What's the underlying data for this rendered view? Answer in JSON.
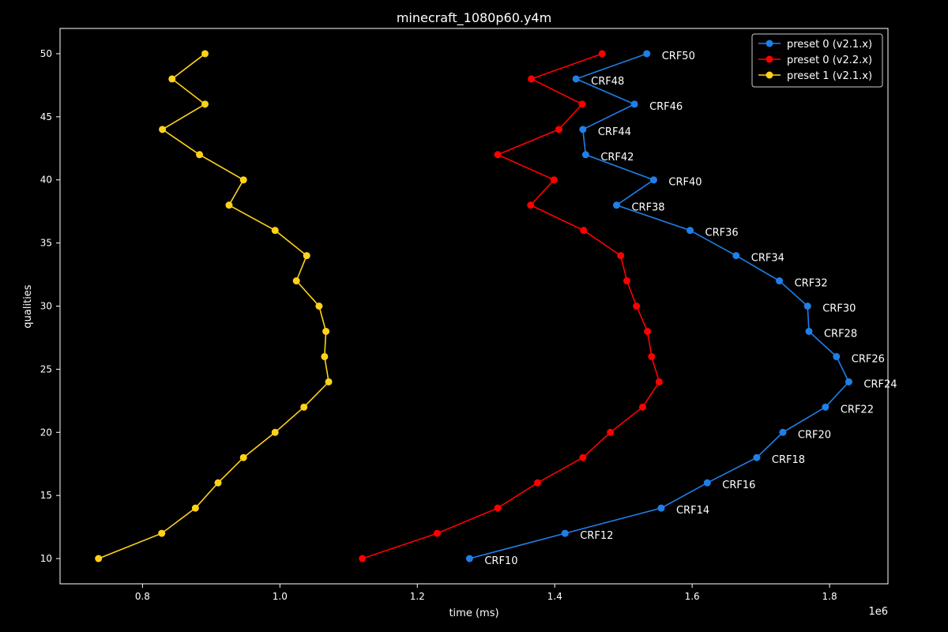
{
  "chart_data": {
    "type": "line",
    "title": "minecraft_1080p60.y4m",
    "xlabel": "time (ms)",
    "ylabel": "qualities",
    "x_offset_label": "1e6",
    "xlim": [
      0.68,
      1.885
    ],
    "ylim": [
      8,
      52
    ],
    "x_ticks": [
      0.8,
      1.0,
      1.2,
      1.4,
      1.6,
      1.8
    ],
    "x_tick_labels": [
      "0.8",
      "1.0",
      "1.2",
      "1.4",
      "1.6",
      "1.8"
    ],
    "y_ticks": [
      10,
      15,
      20,
      25,
      30,
      35,
      40,
      45,
      50
    ],
    "y_tick_labels": [
      "10",
      "15",
      "20",
      "25",
      "30",
      "35",
      "40",
      "45",
      "50"
    ],
    "grid": false,
    "legend_position": "top-right",
    "colors": {
      "background": "#000000",
      "foreground": "#ffffff"
    },
    "series": [
      {
        "name": "preset 0 (v2.1.x)",
        "color": "#1f7fe8",
        "x": [
          1.276,
          1.415,
          1.555,
          1.622,
          1.694,
          1.732,
          1.794,
          1.828,
          1.81,
          1.77,
          1.768,
          1.727,
          1.664,
          1.597,
          1.49,
          1.544,
          1.445,
          1.441,
          1.516,
          1.431,
          1.534
        ],
        "y": [
          10,
          12,
          14,
          16,
          18,
          20,
          22,
          24,
          26,
          28,
          30,
          32,
          34,
          36,
          38,
          40,
          42,
          44,
          46,
          48,
          50
        ],
        "point_labels": [
          "CRF10",
          "CRF12",
          "CRF14",
          "CRF16",
          "CRF18",
          "CRF20",
          "CRF22",
          "CRF24",
          "CRF26",
          "CRF28",
          "CRF30",
          "CRF32",
          "CRF34",
          "CRF36",
          "CRF38",
          "CRF40",
          "CRF42",
          "CRF44",
          "CRF46",
          "CRF48",
          "CRF50"
        ]
      },
      {
        "name": "preset 0 (v2.2.x)",
        "color": "#ff0000",
        "x": [
          1.12,
          1.229,
          1.317,
          1.375,
          1.441,
          1.481,
          1.528,
          1.552,
          1.541,
          1.535,
          1.519,
          1.505,
          1.496,
          1.442,
          1.365,
          1.399,
          1.317,
          1.406,
          1.44,
          1.366,
          1.469
        ],
        "y": [
          10,
          12,
          14,
          16,
          18,
          20,
          22,
          24,
          26,
          28,
          30,
          32,
          34,
          36,
          38,
          40,
          42,
          44,
          46,
          48,
          50
        ]
      },
      {
        "name": "preset 1 (v2.1.x)",
        "color": "#ffd21a",
        "x": [
          0.736,
          0.828,
          0.877,
          0.91,
          0.947,
          0.993,
          1.035,
          1.071,
          1.065,
          1.067,
          1.057,
          1.024,
          1.039,
          0.993,
          0.926,
          0.947,
          0.883,
          0.829,
          0.891,
          0.843,
          0.891
        ],
        "y": [
          10,
          12,
          14,
          16,
          18,
          20,
          22,
          24,
          26,
          28,
          30,
          32,
          34,
          36,
          38,
          40,
          42,
          44,
          46,
          48,
          50
        ]
      }
    ]
  }
}
